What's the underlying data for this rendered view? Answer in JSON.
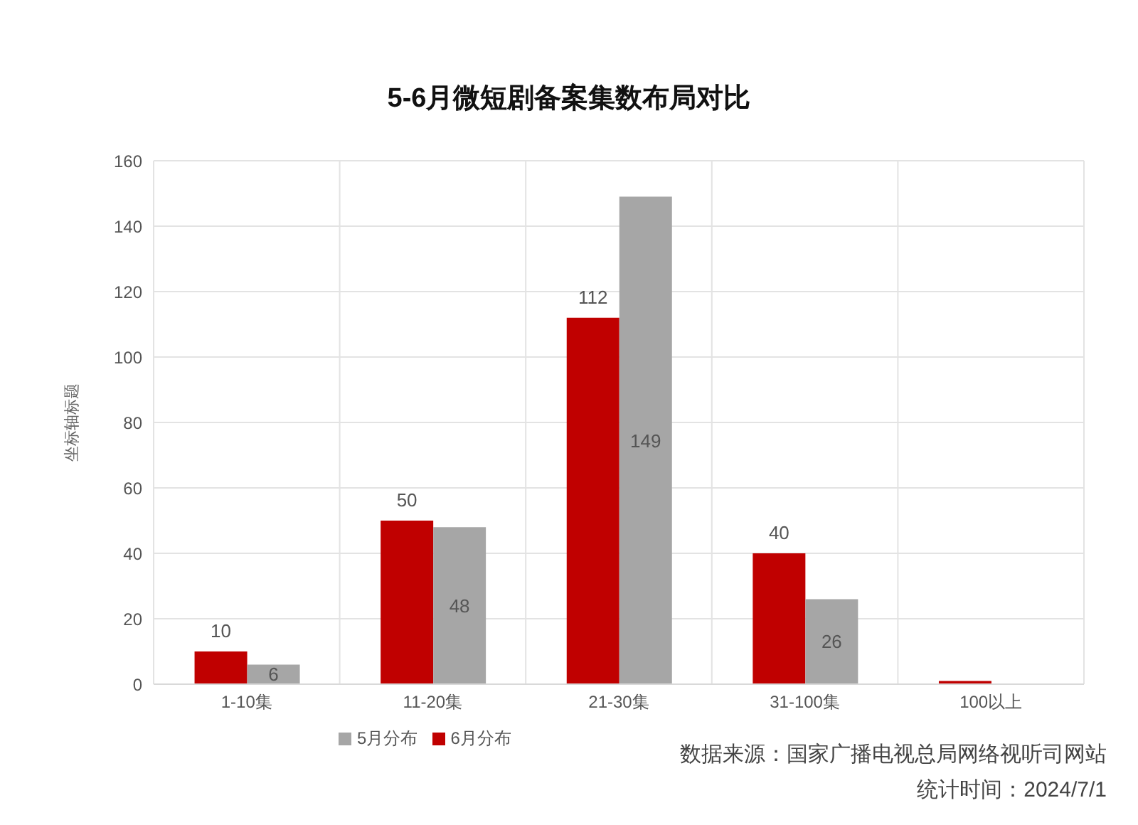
{
  "chart_data": {
    "type": "bar",
    "title": "5-6月微短剧备案集数布局对比",
    "ylabel": "坐标轴标题",
    "categories": [
      "1-10集",
      "11-20集",
      "21-30集",
      "31-100集",
      "100以上"
    ],
    "series": [
      {
        "name": "6月分布",
        "color": "#c00000",
        "values": [
          10,
          50,
          112,
          40,
          1
        ],
        "value_labels": [
          "10",
          "50",
          "112",
          "40",
          null
        ]
      },
      {
        "name": "5月分布",
        "color": "#a6a6a6",
        "values": [
          6,
          48,
          149,
          26,
          0
        ],
        "value_labels": [
          "6",
          "48",
          "149",
          "26",
          null
        ]
      }
    ],
    "ylim": [
      0,
      160
    ],
    "yticks": [
      0,
      20,
      40,
      60,
      80,
      100,
      120,
      140,
      160
    ],
    "grid": true,
    "legend": "bottom left",
    "annotations": [
      "数据来源：国家广播电视总局网络视听司网站",
      "统计时间：2024/7/1"
    ]
  }
}
